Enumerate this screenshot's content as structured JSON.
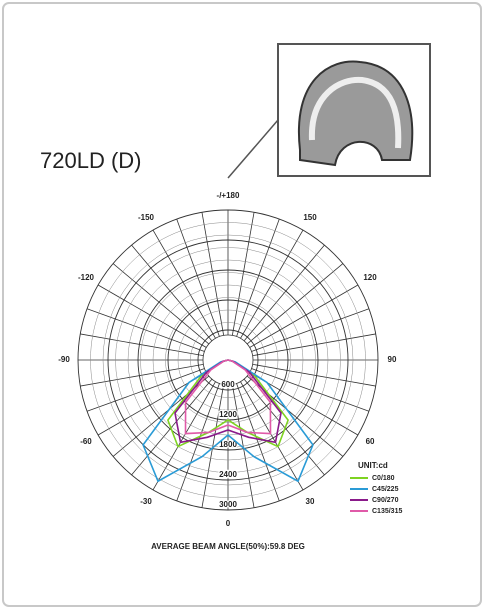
{
  "chart_data": {
    "type": "polar",
    "title": "720LD (D)",
    "angles": [
      -90,
      -75,
      -60,
      -45,
      -30,
      -15,
      0,
      15,
      30,
      45,
      60,
      75,
      90
    ],
    "series": [
      {
        "name": "C0/180",
        "color": "#7ed321",
        "values": [
          0,
          100,
          600,
          1700,
          2000,
          1500,
          1200,
          1500,
          2000,
          1700,
          600,
          100,
          0
        ]
      },
      {
        "name": "C45/225",
        "color": "#2a9bd6",
        "values": [
          0,
          150,
          900,
          2400,
          2800,
          2000,
          1500,
          2000,
          2800,
          2400,
          900,
          150,
          0
        ]
      },
      {
        "name": "C90/270",
        "color": "#8a1a8a",
        "values": [
          0,
          100,
          500,
          1500,
          1900,
          1600,
          1400,
          1600,
          1900,
          1500,
          500,
          100,
          0
        ]
      },
      {
        "name": "C135/315",
        "color": "#e05aa8",
        "values": [
          0,
          80,
          400,
          1200,
          1700,
          1500,
          1300,
          1500,
          1700,
          1200,
          400,
          80,
          0
        ]
      }
    ],
    "rlim": [
      0,
      3000
    ],
    "rticks": [
      600,
      1200,
      1800,
      2400,
      3000
    ],
    "angle_ticks": [
      {
        "value": 180,
        "label": "-/+180"
      },
      -150,
      150,
      -120,
      120,
      -90,
      90,
      -60,
      60,
      -30,
      30,
      0
    ],
    "legend_title": "UNIT:cd",
    "footer": "AVERAGE BEAM ANGLE(50%):59.8 DEG",
    "grid": true
  }
}
